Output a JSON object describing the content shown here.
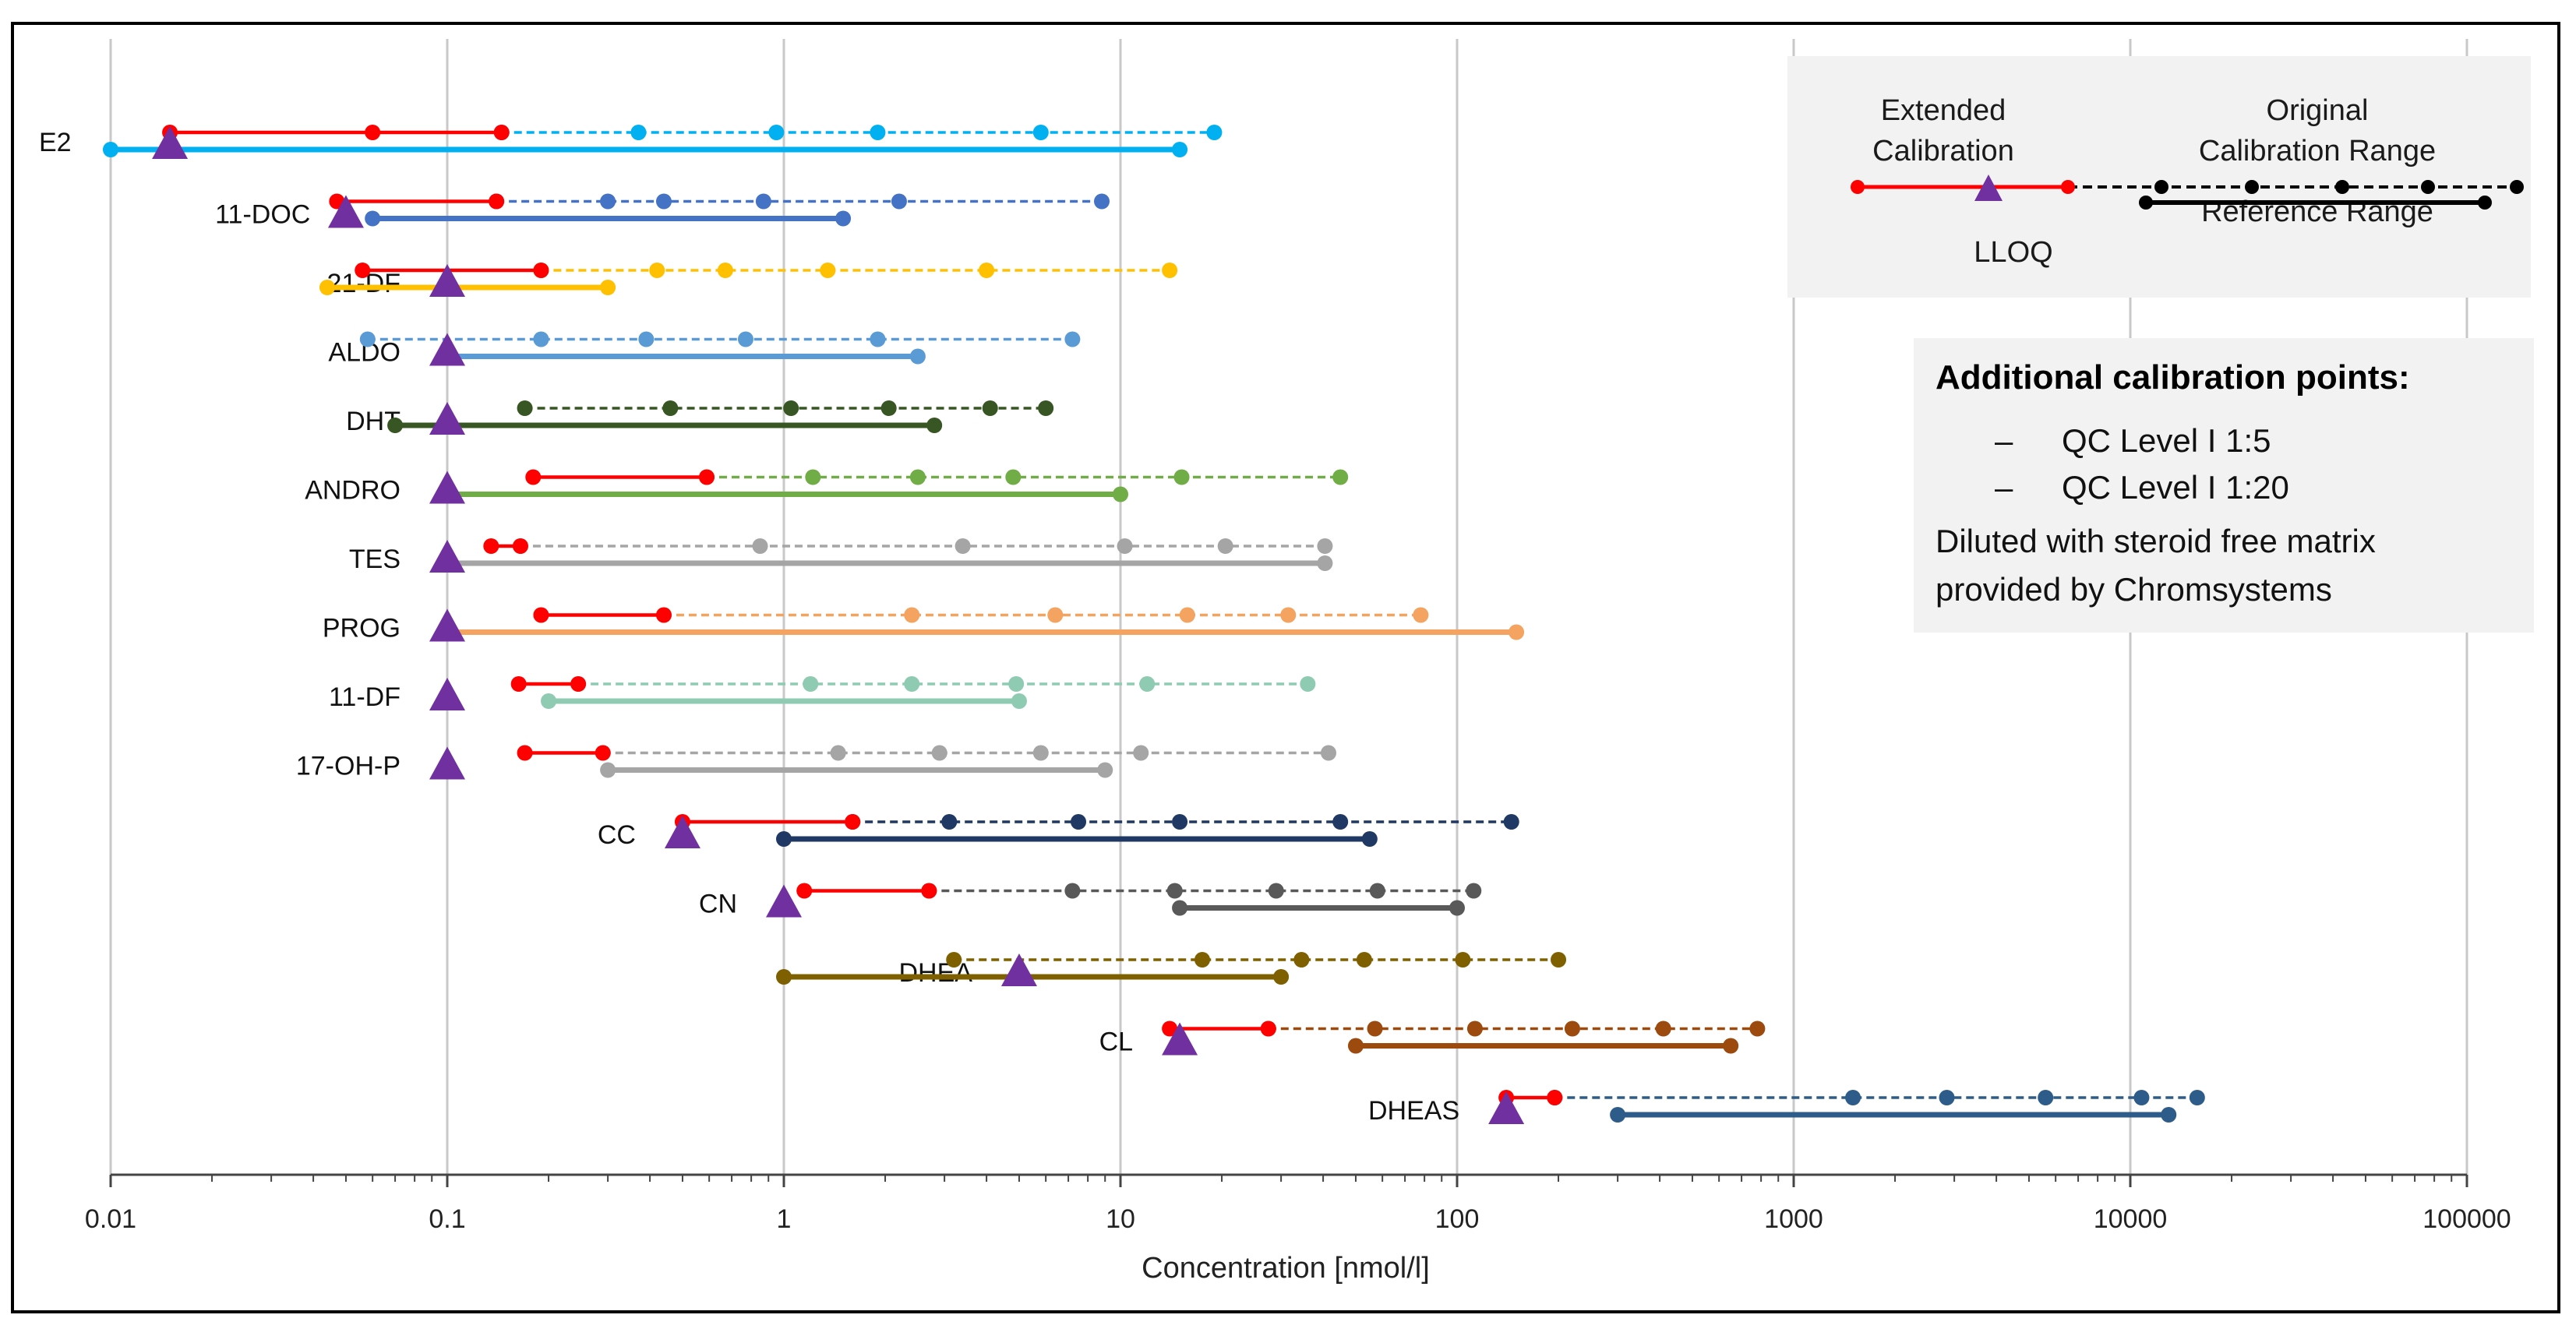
{
  "chart_data": {
    "type": "range-plot",
    "title": "",
    "xlabel": "Concentration [nmol/l]",
    "ylabel": "",
    "x_scale": "log",
    "xlim": [
      0.01,
      100000
    ],
    "x_ticks": [
      {
        "value": 0.01,
        "label": "0.01"
      },
      {
        "value": 0.1,
        "label": "0.1"
      },
      {
        "value": 1,
        "label": "1"
      },
      {
        "value": 10,
        "label": "10"
      },
      {
        "value": 100,
        "label": "100"
      },
      {
        "value": 1000,
        "label": "1000"
      },
      {
        "value": 10000,
        "label": "10000"
      },
      {
        "value": 100000,
        "label": "100000"
      }
    ],
    "grid": "vertical major gridlines",
    "series": [
      {
        "name": "E2",
        "color": "#00b0f0",
        "extended": [
          0.015,
          0.06,
          0.145
        ],
        "original": [
          0.145,
          0.37,
          0.95,
          1.9,
          5.8,
          19
        ],
        "reference": [
          0.01,
          15
        ],
        "lloq": 0.015
      },
      {
        "name": "11-DOC",
        "color": "#4472c4",
        "extended": [
          0.047,
          0.14
        ],
        "original": [
          0.14,
          0.3,
          0.44,
          0.87,
          2.2,
          8.8
        ],
        "reference": [
          0.06,
          1.5
        ],
        "lloq": 0.05
      },
      {
        "name": "21-DF",
        "color": "#ffc000",
        "extended": [
          0.056,
          0.19
        ],
        "original": [
          0.19,
          0.42,
          0.67,
          1.35,
          4,
          14
        ],
        "reference": [
          0.044,
          0.3
        ],
        "lloq": 0.1
      },
      {
        "name": "ALDO",
        "color": "#5b9bd5",
        "extended": [],
        "original": [
          0.058,
          0.19,
          0.39,
          0.77,
          1.9,
          7.2
        ],
        "reference": [
          0.1,
          2.5
        ],
        "lloq": 0.1
      },
      {
        "name": "DHT",
        "color": "#375623",
        "extended": [],
        "original": [
          0.17,
          0.46,
          1.05,
          2.05,
          4.1,
          6
        ],
        "reference": [
          0.07,
          2.8
        ],
        "lloq": 0.1
      },
      {
        "name": "ANDRO",
        "color": "#70ad47",
        "extended": [
          0.18,
          0.59
        ],
        "original": [
          0.59,
          1.22,
          2.5,
          4.8,
          15.2,
          45
        ],
        "reference": [
          0.1,
          10
        ],
        "lloq": 0.1
      },
      {
        "name": "TES",
        "color": "#a5a5a5",
        "extended": [
          0.135,
          0.165
        ],
        "original": [
          0.165,
          0.85,
          3.4,
          10.3,
          20.5,
          40.5
        ],
        "reference": [
          0.1,
          40.5
        ],
        "lloq": 0.1
      },
      {
        "name": "PROG",
        "color": "#f4a460",
        "extended": [
          0.19,
          0.44
        ],
        "original": [
          0.44,
          2.4,
          6.4,
          15.8,
          31.5,
          78
        ],
        "reference": [
          0.1,
          150
        ],
        "lloq": 0.1
      },
      {
        "name": "11-DF",
        "color": "#8fcbb2",
        "extended": [
          0.163,
          0.245
        ],
        "original": [
          0.245,
          1.2,
          2.4,
          4.9,
          12,
          36
        ],
        "reference": [
          0.2,
          5
        ],
        "lloq": 0.1
      },
      {
        "name": "17-OH-P",
        "color": "#a5a5a5",
        "extended": [
          0.17,
          0.29
        ],
        "original": [
          0.29,
          1.45,
          2.9,
          5.8,
          11.5,
          41.5
        ],
        "reference": [
          0.3,
          9
        ],
        "lloq": 0.1
      },
      {
        "name": "CC",
        "color": "#1f3864",
        "extended": [
          0.5,
          1.6
        ],
        "original": [
          1.6,
          3.1,
          7.5,
          15,
          45,
          145
        ],
        "reference": [
          1,
          55
        ],
        "lloq": 0.5
      },
      {
        "name": "CN",
        "color": "#595959",
        "extended": [
          1.15,
          2.7
        ],
        "original": [
          2.7,
          7.2,
          14.5,
          29,
          58,
          112
        ],
        "reference": [
          15,
          100
        ],
        "lloq": 1
      },
      {
        "name": "DHEA",
        "color": "#7f6000",
        "extended": [],
        "original": [
          3.2,
          17.5,
          34.5,
          53,
          104,
          200
        ],
        "reference": [
          1,
          30
        ],
        "lloq": 5
      },
      {
        "name": "CL",
        "color": "#9c4a0e",
        "extended": [
          14,
          27.5
        ],
        "original": [
          27.5,
          57,
          113,
          220,
          410,
          780
        ],
        "reference": [
          50,
          650
        ],
        "lloq": 15
      },
      {
        "name": "DHEAS",
        "color": "#2e5c8a",
        "extended": [
          140,
          195
        ],
        "original": [
          195,
          1500,
          2850,
          5600,
          10800,
          15800
        ],
        "reference": [
          300,
          13000
        ],
        "lloq": 140
      }
    ],
    "extended_color": "#ff0000",
    "lloq_color": "#7030a0"
  },
  "legend": {
    "extended_label_line1": "Extended",
    "extended_label_line2": "Calibration",
    "original_label_line1": "Original",
    "original_label_line2": "Calibration Range",
    "lloq_label": "LLOQ",
    "reference_label": "Reference Range"
  },
  "notes": {
    "title": "Additional calibration points:",
    "items": [
      {
        "dash": "–",
        "text": "QC Level I 1:5"
      },
      {
        "dash": "–",
        "text": "QC Level I 1:20"
      }
    ],
    "para_line1": "Diluted with steroid free matrix",
    "para_line2": "provided by Chromsystems"
  }
}
